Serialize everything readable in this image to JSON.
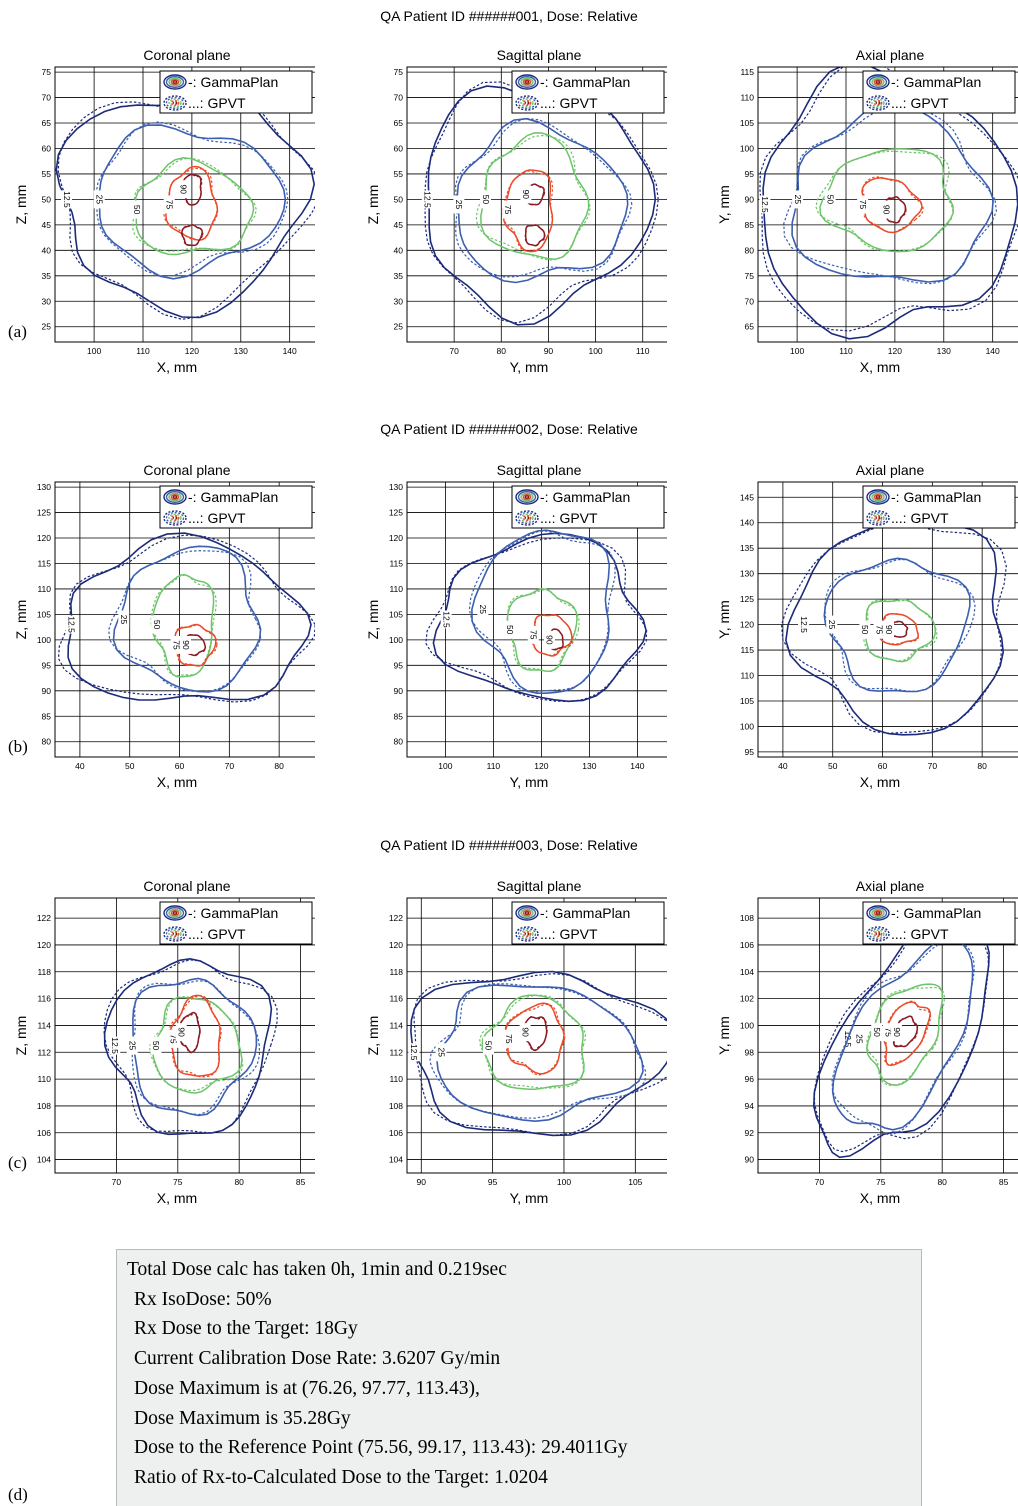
{
  "row_titles": [
    "QA Patient ID ######001, Dose: Relative",
    "QA Patient ID ######002, Dose: Relative",
    "QA Patient ID ######003, Dose: Relative"
  ],
  "panel_labels": [
    "(a)",
    "(b)",
    "(c)",
    "(d)"
  ],
  "legend": {
    "gammaplan": "-: GammaPlan",
    "gpvt": "...: GPVT"
  },
  "colors": {
    "12.5": "#1c2a7a",
    "25": "#3d5fb0",
    "50": "#6ec46a",
    "75": "#ea4b2a",
    "90": "#8b1a22",
    "grid": "#000000"
  },
  "report_lines": [
    "Total Dose calc has taken 0h, 1min and 0.219sec",
    "Rx IsoDose: 50%",
    "Rx Dose to the Target: 18Gy",
    "Current Calibration Dose Rate: 3.6207 Gy/min",
    "Dose Maximum is at (76.26, 97.77, 113.43),",
    "Dose Maximum is 35.28Gy",
    "Dose to the Reference Point (75.56, 99.17, 113.43): 29.4011Gy",
    "Ratio of Rx-to-Calculated Dose to the Target: 1.0204"
  ],
  "chart_data": [
    {
      "type": "contour",
      "title": "Coronal plane",
      "xlabel": "X, mm",
      "ylabel": "Z, mm",
      "xlim": [
        92,
        146
      ],
      "ylim": [
        22,
        76
      ],
      "xticks": [
        100,
        110,
        120,
        130,
        140
      ],
      "yticks": [
        25,
        30,
        35,
        40,
        45,
        50,
        55,
        60,
        65,
        70,
        75
      ],
      "series": [
        {
          "name": "GammaPlan",
          "style": "solid"
        },
        {
          "name": "GPVT",
          "style": "dotted"
        }
      ],
      "contours": [
        {
          "level": "12.5",
          "cx": 118,
          "cy": 50,
          "rx": 25,
          "ry": 21,
          "rot": 0,
          "label": "12.5"
        },
        {
          "level": "25",
          "cx": 119,
          "cy": 50,
          "rx": 19,
          "ry": 14,
          "rot": 0,
          "label": "25"
        },
        {
          "level": "50",
          "cx": 120,
          "cy": 48,
          "rx": 12,
          "ry": 9,
          "rot": 0,
          "label": "50"
        },
        {
          "level": "75",
          "cx": 120,
          "cy": 49,
          "rx": 5,
          "ry": 7,
          "rot": 0,
          "label": "75"
        },
        {
          "level": "90",
          "cx": 120,
          "cy": 52,
          "rx": 2,
          "ry": 3,
          "rot": 0,
          "label": "90"
        },
        {
          "level": "90",
          "cx": 120,
          "cy": 43,
          "rx": 2,
          "ry": 2,
          "rot": 0,
          "label": ""
        }
      ]
    },
    {
      "type": "contour",
      "title": "Sagittal plane",
      "xlabel": "Y, mm",
      "ylabel": "Z, mm",
      "xlim": [
        60,
        116
      ],
      "ylim": [
        22,
        76
      ],
      "xticks": [
        70,
        80,
        90,
        100,
        110
      ],
      "yticks": [
        25,
        30,
        35,
        40,
        45,
        50,
        55,
        60,
        65,
        70,
        75
      ],
      "series": [
        {
          "name": "GammaPlan",
          "style": "solid"
        },
        {
          "name": "GPVT",
          "style": "dotted"
        }
      ],
      "contours": [
        {
          "level": "12.5",
          "cx": 87,
          "cy": 50,
          "rx": 24,
          "ry": 22,
          "rot": 0,
          "label": "12.5"
        },
        {
          "level": "25",
          "cx": 88,
          "cy": 49,
          "rx": 18,
          "ry": 15,
          "rot": 0,
          "label": "25"
        },
        {
          "level": "50",
          "cx": 87,
          "cy": 50,
          "rx": 11,
          "ry": 12,
          "rot": 0,
          "label": "50"
        },
        {
          "level": "75",
          "cx": 86,
          "cy": 48,
          "rx": 5,
          "ry": 8,
          "rot": 0,
          "label": "75"
        },
        {
          "level": "90",
          "cx": 87,
          "cy": 51,
          "rx": 2,
          "ry": 2,
          "rot": 0,
          "label": "90"
        },
        {
          "level": "90",
          "cx": 87,
          "cy": 43,
          "rx": 2,
          "ry": 2,
          "rot": 0,
          "label": ""
        }
      ]
    },
    {
      "type": "contour",
      "title": "Axial plane",
      "xlabel": "X, mm",
      "ylabel": "Y, mm",
      "xlim": [
        92,
        146
      ],
      "ylim": [
        62,
        116
      ],
      "xticks": [
        100,
        110,
        120,
        130,
        140
      ],
      "yticks": [
        65,
        70,
        75,
        80,
        85,
        90,
        95,
        100,
        105,
        110,
        115
      ],
      "series": [
        {
          "name": "GammaPlan",
          "style": "solid"
        },
        {
          "name": "GPVT",
          "style": "dotted"
        }
      ],
      "contours": [
        {
          "level": "12.5",
          "cx": 118,
          "cy": 89,
          "rx": 26,
          "ry": 25,
          "rot": 0,
          "label": "12.5"
        },
        {
          "level": "25",
          "cx": 119,
          "cy": 90,
          "rx": 20,
          "ry": 17,
          "rot": 0,
          "label": "25"
        },
        {
          "level": "50",
          "cx": 119,
          "cy": 90,
          "rx": 13,
          "ry": 10,
          "rot": 0,
          "label": "50"
        },
        {
          "level": "75",
          "cx": 119,
          "cy": 89,
          "rx": 6,
          "ry": 5,
          "rot": -30,
          "label": "75"
        },
        {
          "level": "90",
          "cx": 120,
          "cy": 88,
          "rx": 2,
          "ry": 2.5,
          "rot": 0,
          "label": "90"
        }
      ]
    },
    {
      "type": "contour",
      "title": "Coronal plane",
      "xlabel": "X, mm",
      "ylabel": "Z, mm",
      "xlim": [
        35,
        88
      ],
      "ylim": [
        77,
        131
      ],
      "xticks": [
        40,
        50,
        60,
        70,
        80
      ],
      "yticks": [
        80,
        85,
        90,
        95,
        100,
        105,
        110,
        115,
        120,
        125,
        130
      ],
      "series": [
        {
          "name": "GammaPlan",
          "style": "solid"
        },
        {
          "name": "GPVT",
          "style": "dotted"
        }
      ],
      "contours": [
        {
          "level": "12.5",
          "cx": 61,
          "cy": 103,
          "rx": 24,
          "ry": 16,
          "rot": 0,
          "label": "12.5"
        },
        {
          "level": "25",
          "cx": 62,
          "cy": 104,
          "rx": 14,
          "ry": 14,
          "rot": 0,
          "label": "25"
        },
        {
          "level": "50",
          "cx": 61,
          "cy": 103,
          "rx": 6,
          "ry": 10,
          "rot": 0,
          "label": "50"
        },
        {
          "level": "75",
          "cx": 63,
          "cy": 99,
          "rx": 4,
          "ry": 4,
          "rot": 0,
          "label": "75"
        },
        {
          "level": "90",
          "cx": 63,
          "cy": 99,
          "rx": 2,
          "ry": 2,
          "rot": 0,
          "label": "90"
        }
      ]
    },
    {
      "type": "contour",
      "title": "Sagittal plane",
      "xlabel": "Y, mm",
      "ylabel": "Z, mm",
      "xlim": [
        92,
        147
      ],
      "ylim": [
        77,
        131
      ],
      "xticks": [
        100,
        110,
        120,
        130,
        140
      ],
      "yticks": [
        80,
        85,
        90,
        95,
        100,
        105,
        110,
        115,
        120,
        125,
        130
      ],
      "series": [
        {
          "name": "GammaPlan",
          "style": "solid"
        },
        {
          "name": "GPVT",
          "style": "dotted"
        }
      ],
      "contours": [
        {
          "level": "12.5",
          "cx": 120,
          "cy": 104,
          "rx": 21,
          "ry": 16,
          "rot": 0,
          "label": "12.5"
        },
        {
          "level": "25",
          "cx": 121,
          "cy": 106,
          "rx": 14,
          "ry": 16,
          "rot": 0,
          "label": "25"
        },
        {
          "level": "50",
          "cx": 120,
          "cy": 102,
          "rx": 7,
          "ry": 8,
          "rot": 0,
          "label": "50"
        },
        {
          "level": "75",
          "cx": 122,
          "cy": 101,
          "rx": 4,
          "ry": 4,
          "rot": 0,
          "label": "75"
        },
        {
          "level": "90",
          "cx": 123,
          "cy": 100,
          "rx": 1.5,
          "ry": 2,
          "rot": 0,
          "label": "90"
        }
      ]
    },
    {
      "type": "contour",
      "title": "Axial plane",
      "xlabel": "X, mm",
      "ylabel": "Y, mm",
      "xlim": [
        35,
        88
      ],
      "ylim": [
        94,
        148
      ],
      "xticks": [
        40,
        50,
        60,
        70,
        80
      ],
      "yticks": [
        95,
        100,
        105,
        110,
        115,
        120,
        125,
        130,
        135,
        140,
        145
      ],
      "series": [
        {
          "name": "GammaPlan",
          "style": "solid"
        },
        {
          "name": "GPVT",
          "style": "dotted"
        }
      ],
      "contours": [
        {
          "level": "12.5",
          "cx": 64,
          "cy": 120,
          "rx": 21,
          "ry": 21,
          "rot": 0,
          "label": "12.5"
        },
        {
          "level": "25",
          "cx": 63,
          "cy": 120,
          "rx": 14,
          "ry": 13,
          "rot": 0,
          "label": "25"
        },
        {
          "level": "50",
          "cx": 63,
          "cy": 119,
          "rx": 7,
          "ry": 6,
          "rot": 0,
          "label": "50"
        },
        {
          "level": "75",
          "cx": 63,
          "cy": 119,
          "rx": 4,
          "ry": 3,
          "rot": 0,
          "label": "75"
        },
        {
          "level": "90",
          "cx": 63,
          "cy": 119,
          "rx": 2,
          "ry": 1.5,
          "rot": 0,
          "label": "90"
        }
      ]
    },
    {
      "type": "contour",
      "title": "Coronal plane",
      "xlabel": "X, mm",
      "ylabel": "Z, mm",
      "xlim": [
        65,
        86.5
      ],
      "ylim": [
        103,
        123.5
      ],
      "xticks": [
        70,
        75,
        80,
        85
      ],
      "yticks": [
        104,
        106,
        108,
        110,
        112,
        114,
        116,
        118,
        120,
        122
      ],
      "series": [
        {
          "name": "GammaPlan",
          "style": "solid"
        },
        {
          "name": "GPVT",
          "style": "dotted"
        }
      ],
      "contours": [
        {
          "level": "12.5",
          "cx": 76,
          "cy": 112.5,
          "rx": 6.5,
          "ry": 6.5,
          "rot": 0,
          "label": "12.5"
        },
        {
          "level": "25",
          "cx": 76,
          "cy": 112.5,
          "rx": 5,
          "ry": 5,
          "rot": 0,
          "label": "25"
        },
        {
          "level": "50",
          "cx": 76.5,
          "cy": 112.5,
          "rx": 3.5,
          "ry": 3.5,
          "rot": 0,
          "label": "50"
        },
        {
          "level": "75",
          "cx": 76.5,
          "cy": 113,
          "rx": 2,
          "ry": 3,
          "rot": 0,
          "label": "75"
        },
        {
          "level": "90",
          "cx": 76,
          "cy": 113.5,
          "rx": 0.8,
          "ry": 1.4,
          "rot": 0,
          "label": "90"
        }
      ]
    },
    {
      "type": "contour",
      "title": "Sagittal plane",
      "xlabel": "Y, mm",
      "ylabel": "Z, mm",
      "xlim": [
        89,
        107.5
      ],
      "ylim": [
        103,
        123.5
      ],
      "xticks": [
        90,
        95,
        100,
        105
      ],
      "yticks": [
        104,
        106,
        108,
        110,
        112,
        114,
        116,
        118,
        120,
        122
      ],
      "series": [
        {
          "name": "GammaPlan",
          "style": "solid"
        },
        {
          "name": "GPVT",
          "style": "dotted"
        }
      ],
      "contours": [
        {
          "level": "12.5",
          "cx": 98,
          "cy": 112,
          "rx": 9,
          "ry": 6,
          "rot": 0,
          "label": "12.5"
        },
        {
          "level": "25",
          "cx": 98,
          "cy": 112,
          "rx": 7,
          "ry": 5,
          "rot": 0,
          "label": "25"
        },
        {
          "level": "50",
          "cx": 98,
          "cy": 112.5,
          "rx": 3.5,
          "ry": 3.5,
          "rot": 0,
          "label": "50"
        },
        {
          "level": "75",
          "cx": 98,
          "cy": 113,
          "rx": 2,
          "ry": 2.5,
          "rot": 0,
          "label": "75"
        },
        {
          "level": "90",
          "cx": 98,
          "cy": 113.5,
          "rx": 0.8,
          "ry": 1.2,
          "rot": 0,
          "label": "90"
        }
      ]
    },
    {
      "type": "contour",
      "title": "Axial plane",
      "xlabel": "X, mm",
      "ylabel": "Y, mm",
      "xlim": [
        65,
        86.5
      ],
      "ylim": [
        89,
        109.5
      ],
      "xticks": [
        70,
        75,
        80,
        85
      ],
      "yticks": [
        90,
        92,
        94,
        96,
        98,
        100,
        102,
        104,
        106,
        108
      ],
      "series": [
        {
          "name": "GammaPlan",
          "style": "solid"
        },
        {
          "name": "GPVT",
          "style": "dotted"
        }
      ],
      "contours": [
        {
          "level": "12.5",
          "cx": 77,
          "cy": 99,
          "rx": 5,
          "ry": 10,
          "rot": -35,
          "label": "12.5"
        },
        {
          "level": "25",
          "cx": 77,
          "cy": 99,
          "rx": 4,
          "ry": 8,
          "rot": -35,
          "label": "25"
        },
        {
          "level": "50",
          "cx": 77,
          "cy": 99.5,
          "rx": 2.5,
          "ry": 4,
          "rot": -30,
          "label": "50"
        },
        {
          "level": "75",
          "cx": 77,
          "cy": 99.5,
          "rx": 1.5,
          "ry": 2.5,
          "rot": -30,
          "label": "75"
        },
        {
          "level": "90",
          "cx": 77,
          "cy": 99.5,
          "rx": 0.8,
          "ry": 1.2,
          "rot": -30,
          "label": "90"
        }
      ]
    }
  ]
}
